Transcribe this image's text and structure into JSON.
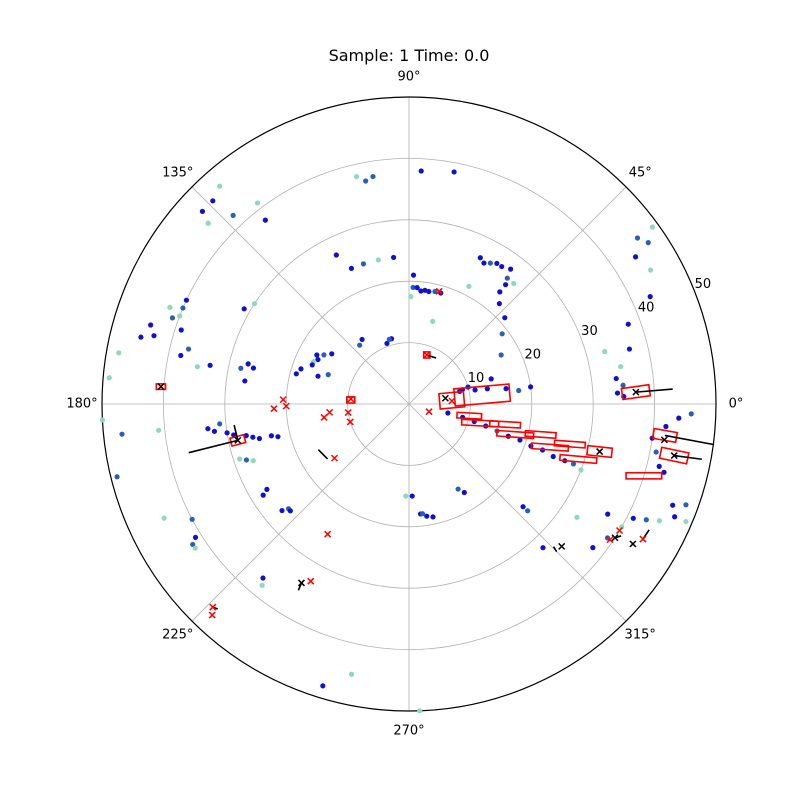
{
  "title": "Sample: 1 Time: 0.0",
  "chart_data": {
    "type": "scatter",
    "projection": "polar",
    "title": "Sample: 1 Time: 0.0",
    "theta_ticks": [
      "0°",
      "45°",
      "90°",
      "135°",
      "180°",
      "225°",
      "270°",
      "315°"
    ],
    "r_ticks": [
      "10",
      "20",
      "30",
      "40",
      "50"
    ],
    "rlim": [
      0,
      50
    ],
    "r_label_angle_deg": 22.5,
    "grid": true,
    "colors": {
      "point_dark": "#1010d0",
      "point_mid": "#2a5fb8",
      "point_light": "#8fd8b8",
      "box": "#ff0000",
      "cross_red": "#ff0000",
      "cross_black": "#000000",
      "velocity": "#000000"
    },
    "points": [
      {
        "theta": 103,
        "r": 38,
        "c": "light"
      },
      {
        "theta": 101,
        "r": 37,
        "c": "mid"
      },
      {
        "theta": 99,
        "r": 37.5,
        "c": "mid"
      },
      {
        "theta": 87,
        "r": 38,
        "c": "dark"
      },
      {
        "theta": 79,
        "r": 38.5,
        "c": "dark"
      },
      {
        "theta": 88,
        "r": 21,
        "c": "dark"
      },
      {
        "theta": 88,
        "r": 19,
        "c": "mid"
      },
      {
        "theta": 89,
        "r": 17.5,
        "c": "light"
      },
      {
        "theta": 86,
        "r": 19,
        "c": "dark"
      },
      {
        "theta": 84,
        "r": 18.5,
        "c": "dark"
      },
      {
        "theta": 82,
        "r": 18.7,
        "c": "dark"
      },
      {
        "theta": 80,
        "r": 18.6,
        "c": "dark"
      },
      {
        "theta": 77,
        "r": 18.8,
        "c": "mid"
      },
      {
        "theta": 74,
        "r": 18.8,
        "c": "dark"
      },
      {
        "theta": 74,
        "r": 14,
        "c": "light"
      },
      {
        "theta": 64,
        "r": 26.5,
        "c": "dark"
      },
      {
        "theta": 62,
        "r": 26,
        "c": "dark"
      },
      {
        "theta": 60,
        "r": 26.5,
        "c": "mid"
      },
      {
        "theta": 58,
        "r": 27,
        "c": "dark"
      },
      {
        "theta": 56,
        "r": 27,
        "c": "dark"
      },
      {
        "theta": 53,
        "r": 27.5,
        "c": "dark"
      },
      {
        "theta": 52,
        "r": 26,
        "c": "mid"
      },
      {
        "theta": 49,
        "r": 26,
        "c": "light"
      },
      {
        "theta": 51,
        "r": 25,
        "c": "dark"
      },
      {
        "theta": 51,
        "r": 23.5,
        "c": "dark"
      },
      {
        "theta": 48,
        "r": 22,
        "c": "dark"
      },
      {
        "theta": 42,
        "r": 21,
        "c": "dark"
      },
      {
        "theta": 37,
        "r": 19,
        "c": "mid"
      },
      {
        "theta": 28,
        "r": 17,
        "c": "mid"
      },
      {
        "theta": 63,
        "r": 21.5,
        "c": "light"
      },
      {
        "theta": 96,
        "r": 24,
        "c": "dark"
      },
      {
        "theta": 102,
        "r": 24,
        "c": "light"
      },
      {
        "theta": 108,
        "r": 24,
        "c": "mid"
      },
      {
        "theta": 113,
        "r": 24,
        "c": "dark"
      },
      {
        "theta": 116,
        "r": 27,
        "c": "dark"
      },
      {
        "theta": 105,
        "r": 11,
        "c": "dark"
      },
      {
        "theta": 110,
        "r": 10.5,
        "c": "dark"
      },
      {
        "theta": 107,
        "r": 11,
        "c": "mid"
      },
      {
        "theta": 126,
        "r": 13,
        "c": "dark"
      },
      {
        "theta": 130,
        "r": 12.5,
        "c": "mid"
      },
      {
        "theta": 147,
        "r": 15,
        "c": "dark"
      },
      {
        "theta": 150,
        "r": 16,
        "c": "mid"
      },
      {
        "theta": 152,
        "r": 17,
        "c": "dark"
      },
      {
        "theta": 154,
        "r": 16.5,
        "c": "dark"
      },
      {
        "theta": 156,
        "r": 17,
        "c": "light"
      },
      {
        "theta": 158,
        "r": 17,
        "c": "dark"
      },
      {
        "theta": 162,
        "r": 18.5,
        "c": "dark"
      },
      {
        "theta": 165,
        "r": 19,
        "c": "dark"
      },
      {
        "theta": 163,
        "r": 15.5,
        "c": "dark"
      },
      {
        "theta": 160,
        "r": 14,
        "c": "mid"
      },
      {
        "theta": 167,
        "r": 26,
        "c": "dark"
      },
      {
        "theta": 166,
        "r": 27,
        "c": "dark"
      },
      {
        "theta": 168,
        "r": 28,
        "c": "mid"
      },
      {
        "theta": 172,
        "r": 27,
        "c": "dark"
      },
      {
        "theta": 150,
        "r": 31,
        "c": "dark"
      },
      {
        "theta": 147,
        "r": 30,
        "c": "light"
      },
      {
        "theta": 169,
        "r": 33,
        "c": "dark"
      },
      {
        "theta": 170,
        "r": 35,
        "c": "light"
      },
      {
        "theta": 166,
        "r": 37,
        "c": "mid"
      },
      {
        "theta": 168,
        "r": 38,
        "c": "dark"
      },
      {
        "theta": 162,
        "r": 39,
        "c": "dark"
      },
      {
        "theta": 159,
        "r": 40,
        "c": "light"
      },
      {
        "theta": 160,
        "r": 41,
        "c": "mid"
      },
      {
        "theta": 157,
        "r": 40,
        "c": "mid"
      },
      {
        "theta": 158,
        "r": 42,
        "c": "light"
      },
      {
        "theta": 155,
        "r": 40,
        "c": "dark"
      },
      {
        "theta": 163,
        "r": 44,
        "c": "dark"
      },
      {
        "theta": 165,
        "r": 43,
        "c": "dark"
      },
      {
        "theta": 166,
        "r": 45,
        "c": "dark"
      },
      {
        "theta": 138,
        "r": 44,
        "c": "light"
      },
      {
        "theta": 137,
        "r": 46,
        "c": "dark"
      },
      {
        "theta": 134,
        "r": 46,
        "c": "dark"
      },
      {
        "theta": 131,
        "r": 47,
        "c": "light"
      },
      {
        "theta": 133,
        "r": 42,
        "c": "mid"
      },
      {
        "theta": 128,
        "r": 38,
        "c": "dark"
      },
      {
        "theta": 127,
        "r": 41,
        "c": "light"
      },
      {
        "theta": 170,
        "r": 48,
        "c": "light"
      },
      {
        "theta": 175,
        "r": 49,
        "c": "light"
      },
      {
        "theta": 186,
        "r": 31,
        "c": "mid"
      },
      {
        "theta": 187,
        "r": 33,
        "c": "dark"
      },
      {
        "theta": 188,
        "r": 32,
        "c": "dark"
      },
      {
        "theta": 189,
        "r": 30,
        "c": "dark"
      },
      {
        "theta": 190,
        "r": 29,
        "c": "dark"
      },
      {
        "theta": 191,
        "r": 27,
        "c": "dark"
      },
      {
        "theta": 192,
        "r": 26,
        "c": "dark"
      },
      {
        "theta": 193,
        "r": 25,
        "c": "dark"
      },
      {
        "theta": 193,
        "r": 23,
        "c": "dark"
      },
      {
        "theta": 194,
        "r": 22,
        "c": "dark"
      },
      {
        "theta": 198,
        "r": 29,
        "c": "light"
      },
      {
        "theta": 199,
        "r": 28,
        "c": "mid"
      },
      {
        "theta": 200,
        "r": 27,
        "c": "light"
      },
      {
        "theta": 186,
        "r": 41,
        "c": "light"
      },
      {
        "theta": 186,
        "r": 47,
        "c": "mid"
      },
      {
        "theta": 183,
        "r": 50,
        "c": "light"
      },
      {
        "theta": 194,
        "r": 49,
        "c": "mid"
      },
      {
        "theta": 205,
        "r": 44,
        "c": "light"
      },
      {
        "theta": 212,
        "r": 41,
        "c": "dark"
      },
      {
        "theta": 213,
        "r": 42,
        "c": "mid"
      },
      {
        "theta": 214,
        "r": 42,
        "c": "light"
      },
      {
        "theta": 208,
        "r": 40,
        "c": "mid"
      },
      {
        "theta": 211,
        "r": 27,
        "c": "dark"
      },
      {
        "theta": 212,
        "r": 28,
        "c": "dark"
      },
      {
        "theta": 220,
        "r": 27,
        "c": "dark"
      },
      {
        "theta": 221,
        "r": 26,
        "c": "mid"
      },
      {
        "theta": 222,
        "r": 26,
        "c": "dark"
      },
      {
        "theta": 230,
        "r": 37,
        "c": "dark"
      },
      {
        "theta": 231,
        "r": 38,
        "c": "light"
      },
      {
        "theta": 258,
        "r": 45,
        "c": "light"
      },
      {
        "theta": 253,
        "r": 48,
        "c": "dark"
      },
      {
        "theta": 272,
        "r": 50,
        "c": "light"
      },
      {
        "theta": 268,
        "r": 15,
        "c": "light"
      },
      {
        "theta": 272,
        "r": 15,
        "c": "dark"
      },
      {
        "theta": 276,
        "r": 18,
        "c": "dark"
      },
      {
        "theta": 277,
        "r": 18,
        "c": "mid"
      },
      {
        "theta": 279,
        "r": 18.5,
        "c": "dark"
      },
      {
        "theta": 282,
        "r": 18.8,
        "c": "dark"
      },
      {
        "theta": 300,
        "r": 16,
        "c": "mid"
      },
      {
        "theta": 302,
        "r": 17,
        "c": "dark"
      },
      {
        "theta": 318,
        "r": 25,
        "c": "dark"
      },
      {
        "theta": 318,
        "r": 26,
        "c": "mid"
      },
      {
        "theta": 313,
        "r": 32,
        "c": "dark"
      },
      {
        "theta": 322,
        "r": 38,
        "c": "dark"
      },
      {
        "theta": 326,
        "r": 33,
        "c": "light"
      },
      {
        "theta": 326,
        "r": 39,
        "c": "mid"
      },
      {
        "theta": 330,
        "r": 40,
        "c": "light"
      },
      {
        "theta": 331,
        "r": 37,
        "c": "dark"
      },
      {
        "theta": 333,
        "r": 41,
        "c": "dark"
      },
      {
        "theta": 334,
        "r": 43,
        "c": "mid"
      },
      {
        "theta": 335,
        "r": 45,
        "c": "light"
      },
      {
        "theta": 337,
        "r": 47,
        "c": "dark"
      },
      {
        "theta": 339,
        "r": 46,
        "c": "dark"
      },
      {
        "theta": 340,
        "r": 48,
        "c": "mid"
      },
      {
        "theta": 337,
        "r": 49,
        "c": "light"
      },
      {
        "theta": 345,
        "r": 43,
        "c": "dark"
      },
      {
        "theta": 346,
        "r": 42,
        "c": "dark"
      },
      {
        "theta": 349,
        "r": 41,
        "c": "mid"
      },
      {
        "theta": 352,
        "r": 40,
        "c": "dark"
      },
      {
        "theta": 355,
        "r": 42,
        "c": "dark"
      },
      {
        "theta": 357,
        "r": 44,
        "c": "dark"
      },
      {
        "theta": 358,
        "r": 46,
        "c": "mid"
      },
      {
        "theta": 2,
        "r": 35,
        "c": "dark"
      },
      {
        "theta": 3,
        "r": 34,
        "c": "dark"
      },
      {
        "theta": 5,
        "r": 35,
        "c": "mid"
      },
      {
        "theta": 7,
        "r": 34,
        "c": "dark"
      },
      {
        "theta": 10,
        "r": 35,
        "c": "light"
      },
      {
        "theta": 15,
        "r": 33,
        "c": "light"
      },
      {
        "theta": 14,
        "r": 37,
        "c": "dark"
      },
      {
        "theta": 20,
        "r": 38,
        "c": "dark"
      },
      {
        "theta": 24,
        "r": 43,
        "c": "dark"
      },
      {
        "theta": 29,
        "r": 45,
        "c": "light"
      },
      {
        "theta": 33,
        "r": 44,
        "c": "dark"
      },
      {
        "theta": 36,
        "r": 49,
        "c": "light"
      },
      {
        "theta": 36,
        "r": 46,
        "c": "mid"
      },
      {
        "theta": 34,
        "r": 47,
        "c": "mid"
      },
      {
        "theta": 17,
        "r": 14,
        "c": "dark"
      },
      {
        "theta": 16,
        "r": 10,
        "c": "dark"
      },
      {
        "theta": 15,
        "r": 9,
        "c": "dark"
      },
      {
        "theta": 14,
        "r": 8.5,
        "c": "dark"
      },
      {
        "theta": 12,
        "r": 11,
        "c": "dark"
      },
      {
        "theta": 11,
        "r": 13,
        "c": "dark"
      },
      {
        "theta": 9,
        "r": 16,
        "c": "dark"
      },
      {
        "theta": 7,
        "r": 18,
        "c": "mid"
      },
      {
        "theta": 8,
        "r": 20,
        "c": "dark"
      },
      {
        "theta": 347,
        "r": 6.5,
        "c": "dark"
      },
      {
        "theta": 346,
        "r": 9,
        "c": "dark"
      },
      {
        "theta": 345,
        "r": 11,
        "c": "dark"
      },
      {
        "theta": 344,
        "r": 13,
        "c": "dark"
      },
      {
        "theta": 343,
        "r": 15,
        "c": "mid"
      },
      {
        "theta": 342,
        "r": 17,
        "c": "dark"
      },
      {
        "theta": 342,
        "r": 19,
        "c": "dark"
      },
      {
        "theta": 341,
        "r": 21,
        "c": "dark"
      },
      {
        "theta": 341,
        "r": 23,
        "c": "dark"
      },
      {
        "theta": 340,
        "r": 25,
        "c": "dark"
      },
      {
        "theta": 340,
        "r": 27,
        "c": "dark"
      },
      {
        "theta": 340,
        "r": 28.5,
        "c": "mid"
      },
      {
        "theta": 339,
        "r": 30,
        "c": "light"
      }
    ],
    "boxes": [
      {
        "theta": 7,
        "r": 12,
        "len": 9,
        "wid": 2.8,
        "rot": 5
      },
      {
        "theta": 5,
        "r": 7,
        "len": 4,
        "wid": 2.5,
        "rot": 5
      },
      {
        "theta": 3,
        "r": 37,
        "len": 4.5,
        "wid": 1.8,
        "rot": 8
      },
      {
        "theta": 353,
        "r": 42,
        "len": 3.8,
        "wid": 1.6,
        "rot": -10
      },
      {
        "theta": 349,
        "r": 44,
        "len": 4.5,
        "wid": 1.8,
        "rot": -12
      },
      {
        "theta": 346,
        "r": 32,
        "len": 4,
        "wid": 1.5,
        "rot": -6
      },
      {
        "theta": 343,
        "r": 40,
        "len": 5.8,
        "wid": 1,
        "rot": 0
      },
      {
        "theta": 345,
        "r": 12,
        "len": 6,
        "wid": 0.9,
        "rot": -3
      },
      {
        "theta": 344,
        "r": 18,
        "len": 6,
        "wid": 0.9,
        "rot": -4
      },
      {
        "theta": 343,
        "r": 24,
        "len": 6,
        "wid": 0.9,
        "rot": -4
      },
      {
        "theta": 342,
        "r": 29,
        "len": 6,
        "wid": 0.9,
        "rot": -5
      },
      {
        "theta": 349,
        "r": 10,
        "len": 4,
        "wid": 0.9,
        "rot": -3
      },
      {
        "theta": 348,
        "r": 16,
        "len": 5,
        "wid": 0.9,
        "rot": -3
      },
      {
        "theta": 347,
        "r": 22,
        "len": 5,
        "wid": 0.9,
        "rot": -4
      },
      {
        "theta": 346,
        "r": 27,
        "len": 5,
        "wid": 0.9,
        "rot": -4
      },
      {
        "theta": 70,
        "r": 8.5,
        "len": 1,
        "wid": 1,
        "rot": 0
      },
      {
        "theta": 176,
        "r": 40.5,
        "len": 1.5,
        "wid": 0.9,
        "rot": 0
      },
      {
        "theta": 192,
        "r": 28.5,
        "len": 2.3,
        "wid": 1.3,
        "rot": 15
      },
      {
        "theta": 176,
        "r": 9.5,
        "len": 1.3,
        "wid": 1,
        "rot": 0
      }
    ],
    "crosses": [
      {
        "theta": 9,
        "r": 6,
        "c": "black"
      },
      {
        "theta": 4,
        "r": 7,
        "c": "red"
      },
      {
        "theta": 3,
        "r": 37,
        "c": "black"
      },
      {
        "theta": 352,
        "r": 42,
        "c": "black"
      },
      {
        "theta": 349,
        "r": 44,
        "c": "black"
      },
      {
        "theta": 346,
        "r": 32,
        "c": "black"
      },
      {
        "theta": 339,
        "r": 3.5,
        "c": "red"
      },
      {
        "theta": 197,
        "r": 10,
        "c": "red"
      },
      {
        "theta": 188,
        "r": 10,
        "c": "red"
      },
      {
        "theta": 186,
        "r": 13,
        "c": "red"
      },
      {
        "theta": 189,
        "r": 14,
        "c": "red"
      },
      {
        "theta": 175,
        "r": 9.5,
        "c": "red"
      },
      {
        "theta": 70,
        "r": 8.5,
        "c": "red"
      },
      {
        "theta": 192,
        "r": 28.5,
        "c": "black"
      },
      {
        "theta": 176,
        "r": 40.5,
        "c": "black"
      },
      {
        "theta": 216,
        "r": 15,
        "c": "red"
      },
      {
        "theta": 238,
        "r": 25,
        "c": "red"
      },
      {
        "theta": 226,
        "r": 46,
        "c": "red"
      },
      {
        "theta": 227,
        "r": 47,
        "c": "red"
      },
      {
        "theta": 241,
        "r": 33,
        "c": "red"
      },
      {
        "theta": 239,
        "r": 34,
        "c": "black"
      },
      {
        "theta": 317,
        "r": 34,
        "c": "black"
      },
      {
        "theta": 326,
        "r": 39.5,
        "c": "red"
      },
      {
        "theta": 327,
        "r": 40,
        "c": "black"
      },
      {
        "theta": 329,
        "r": 40,
        "c": "red"
      },
      {
        "theta": 328,
        "r": 43,
        "c": "black"
      },
      {
        "theta": 330,
        "r": 44,
        "c": "red"
      },
      {
        "theta": 75,
        "r": 19,
        "c": "red"
      },
      {
        "theta": 182,
        "r": 22,
        "c": "red"
      },
      {
        "theta": 181,
        "r": 20,
        "c": "red"
      },
      {
        "theta": 178,
        "r": 20.5,
        "c": "red"
      }
    ],
    "velocities": [
      {
        "theta": 3,
        "r": 37,
        "dx": 6,
        "dy": 0.5
      },
      {
        "theta": 353,
        "r": 42,
        "dx": 8,
        "dy": -1.5
      },
      {
        "theta": 349,
        "r": 44,
        "dx": 4.5,
        "dy": -0.6
      },
      {
        "theta": 192,
        "r": 28.5,
        "dx": -8,
        "dy": -2
      },
      {
        "theta": 192,
        "r": 28.5,
        "dx": -0.6,
        "dy": 2.5
      },
      {
        "theta": 70,
        "r": 8.5,
        "dx": 1.5,
        "dy": -0.5
      },
      {
        "theta": 214,
        "r": 16,
        "dx": -1.5,
        "dy": 1.5
      },
      {
        "theta": 239,
        "r": 34,
        "dx": -0.5,
        "dy": -1.2
      },
      {
        "theta": 226,
        "r": 46,
        "dx": 0.8,
        "dy": -0.3
      },
      {
        "theta": 315,
        "r": 34,
        "dx": -0.5,
        "dy": 0.8
      },
      {
        "theta": 327,
        "r": 40,
        "dx": 1,
        "dy": 0.3
      },
      {
        "theta": 330,
        "r": 44,
        "dx": 1,
        "dy": 1.5
      }
    ]
  }
}
